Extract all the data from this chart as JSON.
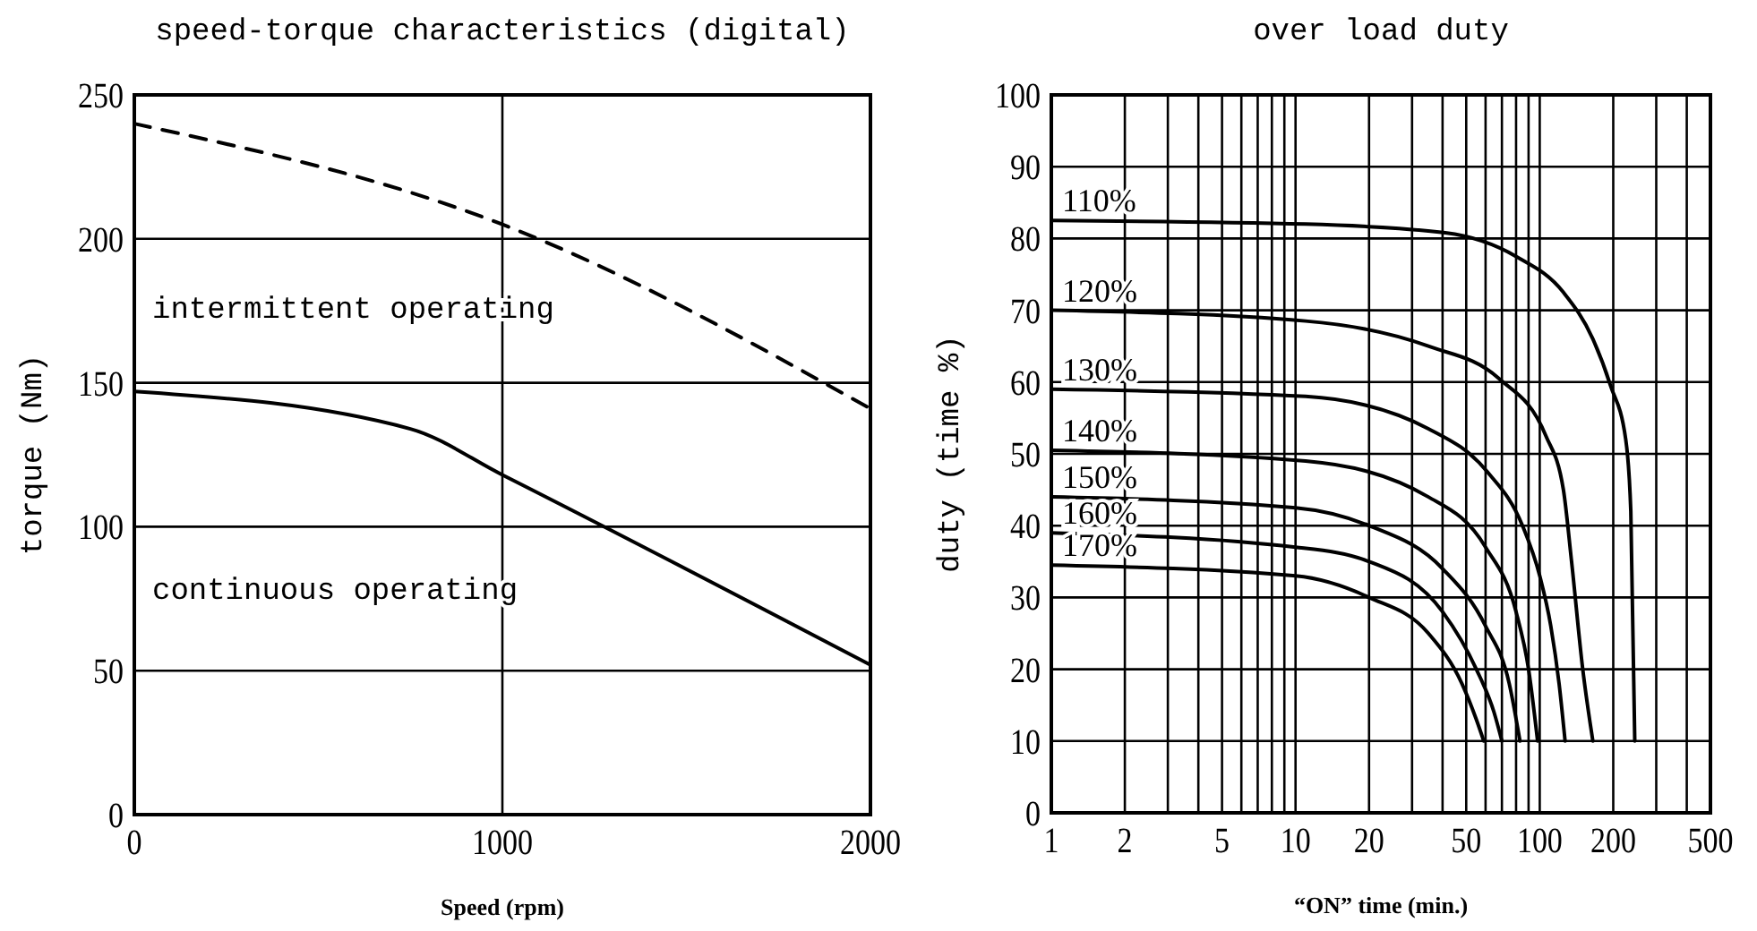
{
  "chart_data": [
    {
      "type": "line",
      "title": "speed-torque characteristics (digital)",
      "xlabel": "Speed (rpm)",
      "ylabel": "torque (Nm)",
      "xlim": [
        0,
        2000
      ],
      "xticks": [
        0,
        1000,
        2000
      ],
      "ylim": [
        0,
        250
      ],
      "yticks": [
        0,
        50,
        100,
        150,
        200,
        250
      ],
      "grid": true,
      "series": [
        {
          "color": "#000000",
          "line_style": "dashed",
          "x": [
            0,
            1000,
            2000
          ],
          "values": [
            240,
            205,
            141
          ]
        },
        {
          "color": "#000000",
          "line_style": "solid",
          "x": [
            0,
            750,
            1000,
            2000
          ],
          "values": [
            147,
            134,
            118,
            52
          ]
        }
      ],
      "annotations": [
        "intermittent operating",
        "continuous operating"
      ]
    },
    {
      "type": "line",
      "title": "over load duty",
      "xlabel": "“ON” time (min.)",
      "ylabel": "duty (time %)",
      "log": "x",
      "xlim": [
        1,
        500
      ],
      "xticks": [
        1,
        2,
        {
          "value": 3,
          "label": null
        },
        {
          "value": 4,
          "label": null
        },
        5,
        {
          "value": 6,
          "label": null
        },
        {
          "value": 7,
          "label": null
        },
        {
          "value": 8,
          "label": null
        },
        {
          "value": 9,
          "label": null
        },
        10,
        20,
        {
          "value": 30,
          "label": null
        },
        {
          "value": 40,
          "label": null
        },
        50,
        {
          "value": 60,
          "label": null
        },
        {
          "value": 70,
          "label": null
        },
        {
          "value": 80,
          "label": null
        },
        {
          "value": 90,
          "label": null
        },
        100,
        200,
        {
          "value": 300,
          "label": null
        },
        {
          "value": 400,
          "label": null
        },
        500
      ],
      "ylim": [
        0,
        100
      ],
      "yticks": [
        0,
        10,
        20,
        30,
        40,
        50,
        60,
        70,
        80,
        90,
        100
      ],
      "grid": true,
      "series": [
        {
          "name": "110%",
          "color": "#000000",
          "x": [
            1,
            11,
            41,
            80,
            125,
            165,
            195,
            225,
            236,
            245
          ],
          "values": [
            82.5,
            82,
            80.8,
            77.5,
            72.5,
            66,
            59.5,
            52,
            42,
            10
          ]
        },
        {
          "name": "120%",
          "color": "#000000",
          "x": [
            1,
            11,
            35,
            68,
            106,
            125,
            135,
            150,
            165
          ],
          "values": [
            70,
            68.5,
            65,
            60.5,
            52.5,
            45,
            35,
            20,
            10
          ]
        },
        {
          "name": "130%",
          "color": "#000000",
          "x": [
            1,
            11,
            35,
            61,
            85,
            100,
            111,
            120,
            127
          ],
          "values": [
            59,
            58,
            53.5,
            47.5,
            40,
            33,
            26,
            18,
            10
          ]
        },
        {
          "name": "140%",
          "color": "#000000",
          "x": [
            1,
            11,
            35,
            60,
            80,
            90,
            98
          ],
          "values": [
            50.5,
            49,
            44,
            37,
            28,
            20,
            10
          ]
        },
        {
          "name": "150%",
          "color": "#000000",
          "x": [
            1,
            10,
            20,
            40,
            60,
            75,
            83
          ],
          "values": [
            44,
            42.5,
            40,
            34,
            26,
            18,
            10
          ]
        },
        {
          "name": "160%",
          "color": "#000000",
          "x": [
            1,
            10,
            20,
            40,
            55,
            65,
            70
          ],
          "values": [
            39,
            37,
            35,
            28,
            20,
            14,
            10
          ]
        },
        {
          "name": "170%",
          "color": "#000000",
          "x": [
            1,
            10,
            20,
            35,
            48,
            55,
            59
          ],
          "values": [
            34.5,
            33,
            30,
            25,
            18,
            13,
            10
          ]
        }
      ]
    }
  ]
}
